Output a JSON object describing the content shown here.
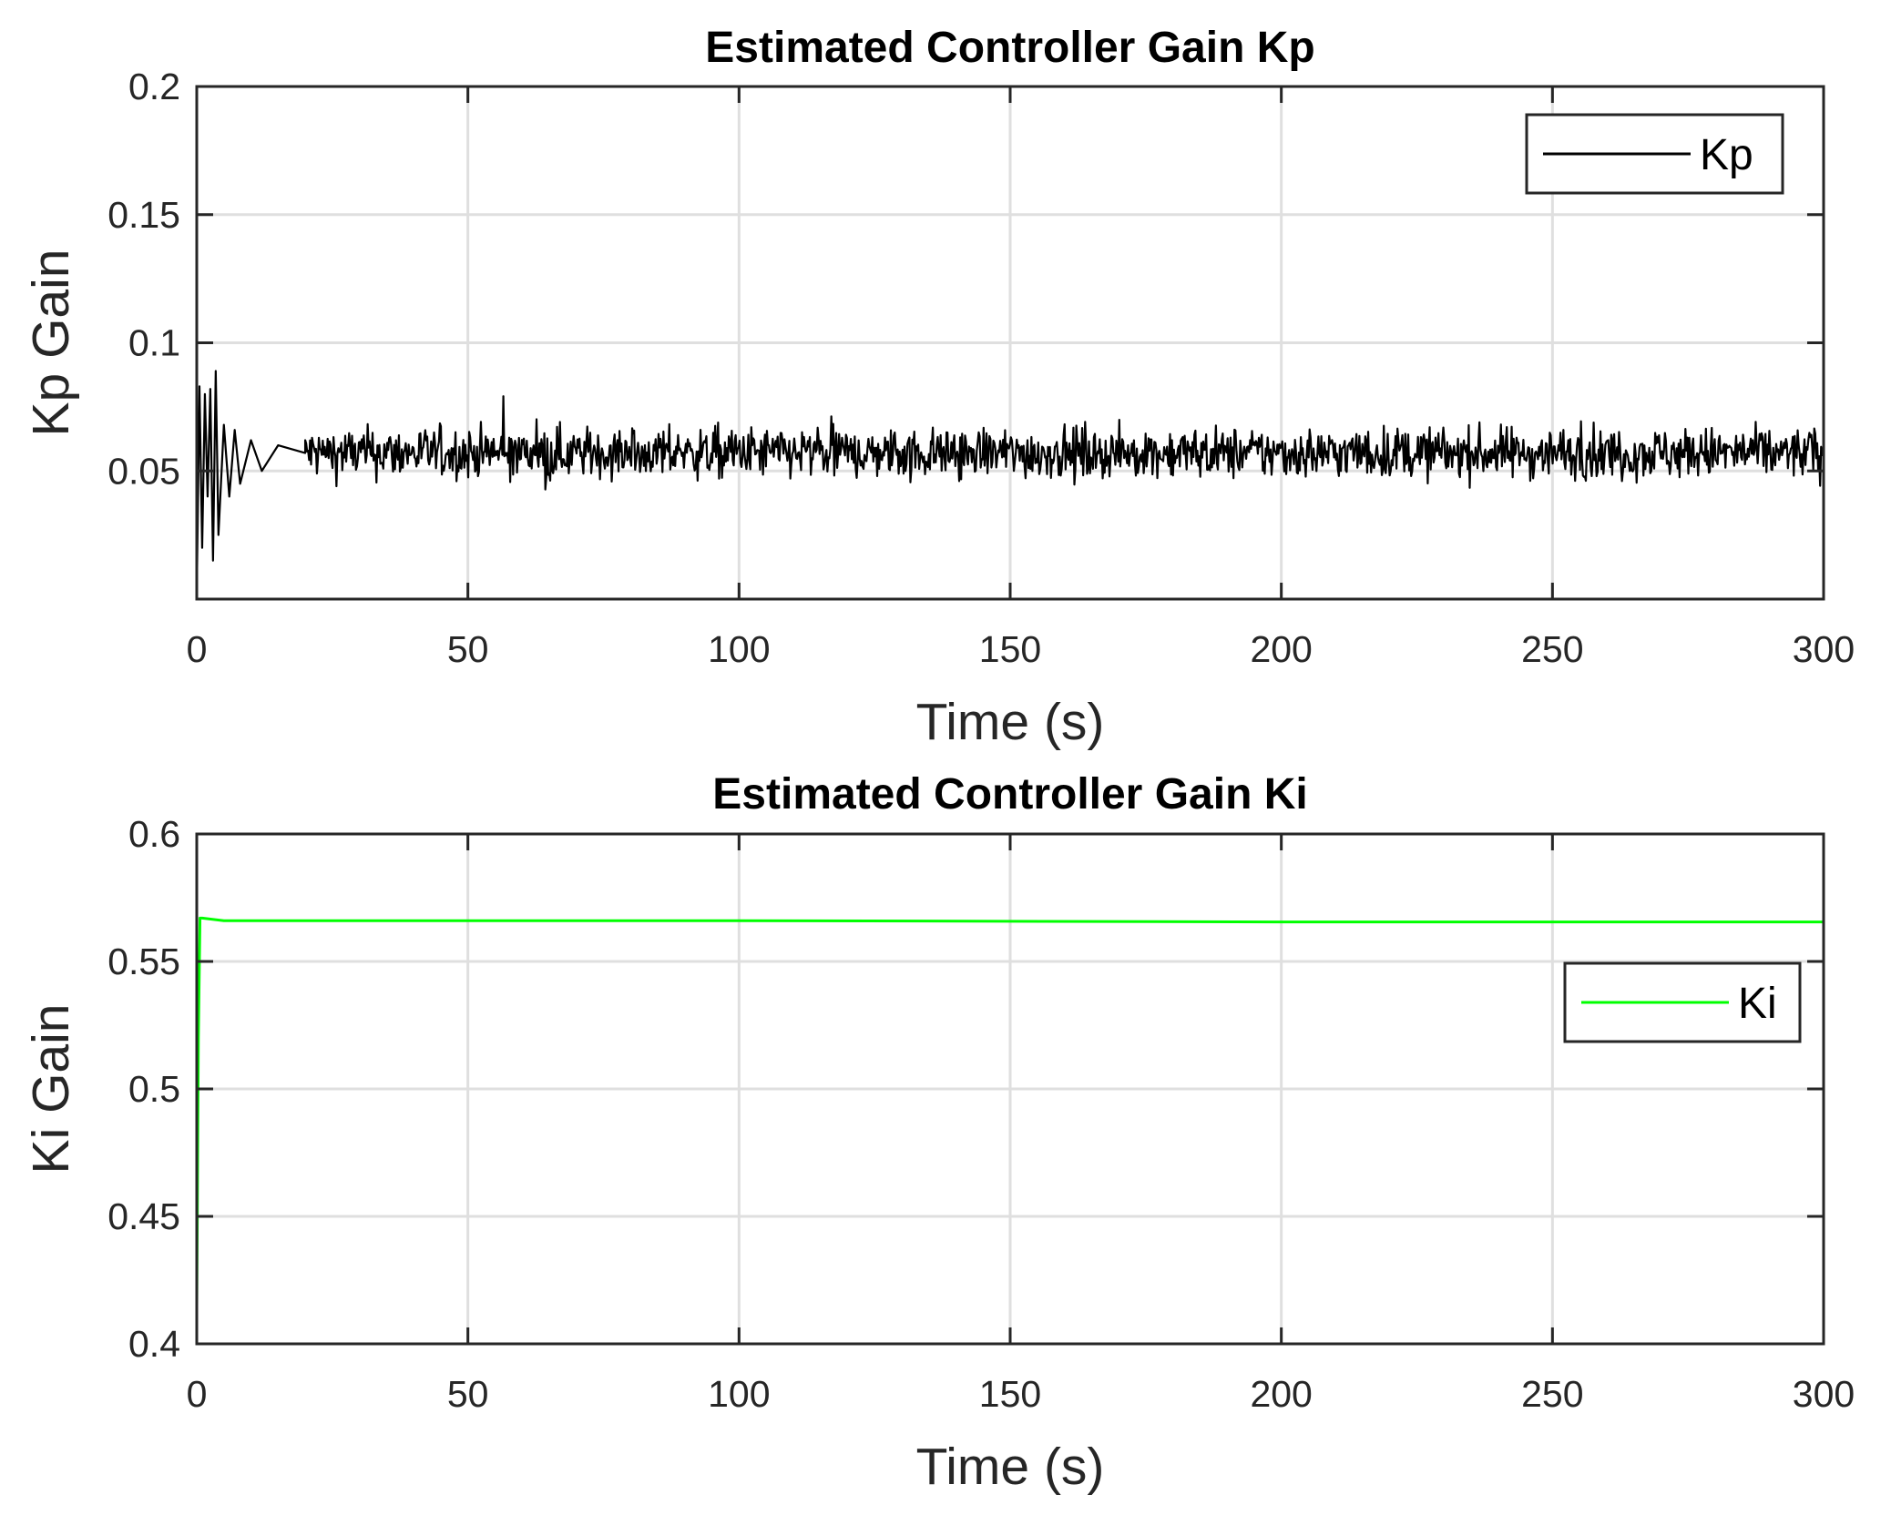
{
  "chart_data": [
    {
      "type": "line",
      "title": "Estimated Controller Gain Kp",
      "xlabel": "Time (s)",
      "ylabel": "Kp Gain",
      "xlim": [
        0,
        300
      ],
      "ylim": [
        0,
        0.2
      ],
      "xticks": [
        "0",
        "50",
        "100",
        "150",
        "200",
        "250",
        "300"
      ],
      "xtick_values": [
        0,
        50,
        100,
        150,
        200,
        250,
        300
      ],
      "yticks": [
        "0.05",
        "0.1",
        "0.15",
        "0.2"
      ],
      "ytick_values": [
        0.05,
        0.1,
        0.15,
        0.2
      ],
      "grid": true,
      "legend": "top-right",
      "series": [
        {
          "name": "Kp",
          "color": "#000000",
          "mean": 0.057,
          "noise": 0.005,
          "x": [
            0,
            0.5,
            1,
            1.5,
            2,
            2.5,
            3,
            3.5,
            4,
            5,
            6,
            7,
            8,
            10,
            12,
            15,
            20
          ],
          "values": [
            0.001,
            0.083,
            0.02,
            0.08,
            0.04,
            0.082,
            0.015,
            0.089,
            0.025,
            0.068,
            0.04,
            0.066,
            0.045,
            0.062,
            0.05,
            0.06,
            0.057
          ]
        }
      ]
    },
    {
      "type": "line",
      "title": "Estimated Controller Gain Ki",
      "xlabel": "Time (s)",
      "ylabel": "Ki Gain",
      "xlim": [
        0,
        300
      ],
      "ylim": [
        0.4,
        0.6
      ],
      "xticks": [
        "0",
        "50",
        "100",
        "150",
        "200",
        "250",
        "300"
      ],
      "xtick_values": [
        0,
        50,
        100,
        150,
        200,
        250,
        300
      ],
      "yticks": [
        "0.4",
        "0.45",
        "0.5",
        "0.55",
        "0.6"
      ],
      "ytick_values": [
        0.4,
        0.45,
        0.5,
        0.55,
        0.6
      ],
      "grid": true,
      "legend": "middle-right",
      "series": [
        {
          "name": "Ki",
          "color": "#00ff00",
          "x": [
            0,
            0.3,
            0.6,
            1,
            5,
            100,
            200,
            300
          ],
          "values": [
            0.415,
            0.52,
            0.567,
            0.567,
            0.566,
            0.566,
            0.5655,
            0.5655
          ]
        }
      ]
    }
  ]
}
